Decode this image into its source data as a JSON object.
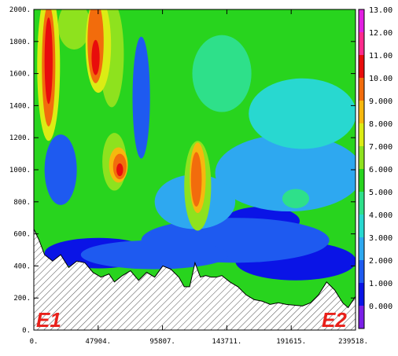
{
  "chart_data": {
    "type": "heatmap",
    "title": "",
    "xlabel": "",
    "ylabel": "",
    "xlim": [
      0,
      239518
    ],
    "ylim": [
      0,
      2000
    ],
    "x_ticks": [
      0,
      47904,
      95807,
      143711,
      191615,
      239518
    ],
    "x_tick_labels": [
      "0.",
      "47904.",
      "95807.",
      "143711.",
      "191615.",
      "239518."
    ],
    "y_ticks": [
      0,
      200,
      400,
      600,
      800,
      1000,
      1200,
      1400,
      1600,
      1800,
      2000
    ],
    "y_tick_labels": [
      "0.",
      "200.",
      "400.",
      "600.",
      "800.",
      "1000.",
      "1200.",
      "1400.",
      "1600.",
      "1800.",
      "2000."
    ],
    "colorbar": {
      "levels": [
        0,
        1,
        2,
        3,
        4,
        5,
        6,
        7,
        8,
        9,
        10,
        11,
        12,
        13
      ],
      "labels": [
        "0.000",
        "1.000",
        "2.000",
        "3.000",
        "4.000",
        "5.000",
        "6.000",
        "7.000",
        "8.000",
        "9.000",
        "10.00",
        "11.00",
        "12.00",
        "13.00"
      ],
      "colors": [
        "#7b1fe8",
        "#0a14e6",
        "#1e5af0",
        "#2ea8f0",
        "#28d8d0",
        "#2ee08a",
        "#28d41e",
        "#8ee21e",
        "#dcec14",
        "#f6b80e",
        "#f26c0c",
        "#e80c0c",
        "#ff2a8c",
        "#e21ee2"
      ]
    },
    "terrain": {
      "x": [
        0,
        4000,
        8000,
        14000,
        20000,
        26000,
        32000,
        38000,
        44000,
        50000,
        56000,
        60000,
        66000,
        72000,
        78000,
        84000,
        90000,
        96000,
        102000,
        108000,
        112000,
        116000,
        120000,
        124000,
        128000,
        132000,
        136000,
        140000,
        146000,
        152000,
        158000,
        164000,
        170000,
        176000,
        182000,
        188000,
        194000,
        200000,
        206000,
        212000,
        218000,
        224000,
        230000,
        234000,
        239518
      ],
      "z": [
        630,
        560,
        470,
        430,
        470,
        390,
        430,
        420,
        360,
        330,
        350,
        300,
        340,
        370,
        310,
        360,
        330,
        400,
        380,
        330,
        270,
        270,
        420,
        330,
        340,
        330,
        330,
        340,
        300,
        270,
        220,
        190,
        180,
        160,
        170,
        160,
        155,
        150,
        170,
        220,
        300,
        250,
        170,
        140,
        210
      ]
    },
    "field_sketch": [
      {
        "level": 1,
        "x": 48000,
        "y": 480,
        "rx": 40000,
        "ry": 95
      },
      {
        "level": 1,
        "x": 195000,
        "y": 430,
        "rx": 45000,
        "ry": 120
      },
      {
        "level": 1,
        "x": 170000,
        "y": 680,
        "rx": 28000,
        "ry": 90
      },
      {
        "level": 2,
        "x": 150000,
        "y": 560,
        "rx": 70000,
        "ry": 140
      },
      {
        "level": 2,
        "x": 90000,
        "y": 470,
        "rx": 55000,
        "ry": 90
      },
      {
        "level": 2,
        "x": 80000,
        "y": 1450,
        "rx": 6500,
        "ry": 380
      },
      {
        "level": 2,
        "x": 20000,
        "y": 1000,
        "rx": 12000,
        "ry": 220
      },
      {
        "level": 3,
        "x": 190000,
        "y": 980,
        "rx": 55000,
        "ry": 240
      },
      {
        "level": 3,
        "x": 120000,
        "y": 800,
        "rx": 30000,
        "ry": 170
      },
      {
        "level": 4,
        "x": 200000,
        "y": 1350,
        "rx": 40000,
        "ry": 220
      },
      {
        "level": 5,
        "x": 195000,
        "y": 820,
        "rx": 10000,
        "ry": 60
      },
      {
        "level": 5,
        "x": 140000,
        "y": 1600,
        "rx": 22000,
        "ry": 240
      },
      {
        "level": 7,
        "x": 30000,
        "y": 1900,
        "rx": 12000,
        "ry": 150
      },
      {
        "level": 7,
        "x": 58000,
        "y": 1720,
        "rx": 9000,
        "ry": 330
      },
      {
        "level": 7,
        "x": 60000,
        "y": 1050,
        "rx": 9000,
        "ry": 180
      },
      {
        "level": 7,
        "x": 122000,
        "y": 900,
        "rx": 10000,
        "ry": 280
      },
      {
        "level": 8,
        "x": 11000,
        "y": 1650,
        "rx": 8500,
        "ry": 470
      },
      {
        "level": 8,
        "x": 48000,
        "y": 1780,
        "rx": 9500,
        "ry": 300
      },
      {
        "level": 9,
        "x": 63000,
        "y": 1030,
        "rx": 7000,
        "ry": 110
      },
      {
        "level": 9,
        "x": 122000,
        "y": 950,
        "rx": 6000,
        "ry": 220
      },
      {
        "level": 10,
        "x": 11000,
        "y": 1650,
        "rx": 5000,
        "ry": 380
      },
      {
        "level": 10,
        "x": 46000,
        "y": 1800,
        "rx": 6000,
        "ry": 260
      },
      {
        "level": 10,
        "x": 64000,
        "y": 1020,
        "rx": 5000,
        "ry": 80
      },
      {
        "level": 10,
        "x": 121000,
        "y": 940,
        "rx": 4000,
        "ry": 170
      },
      {
        "level": 11,
        "x": 11000,
        "y": 1680,
        "rx": 3000,
        "ry": 270
      },
      {
        "level": 11,
        "x": 46000,
        "y": 1700,
        "rx": 3000,
        "ry": 110
      },
      {
        "level": 11,
        "x": 64000,
        "y": 1000,
        "rx": 2500,
        "ry": 40
      }
    ],
    "annotations": [
      "E1",
      "E2"
    ]
  }
}
